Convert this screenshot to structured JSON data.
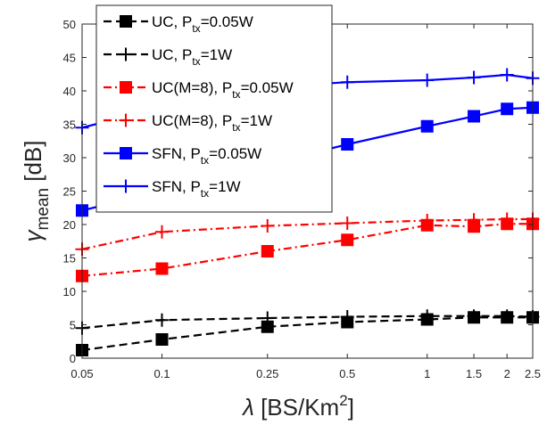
{
  "chart_data": {
    "type": "line",
    "xlabel": "λ [BS/Km²]",
    "xlabel_parts": {
      "symbol": "λ",
      "text": " [BS/Km",
      "sup": "2",
      "close": "]"
    },
    "ylabel": "γmean [dB]",
    "ylabel_parts": {
      "symbol": "γ",
      "sub": "mean",
      "text": " [dB]"
    },
    "x_scale": "log",
    "xlim": [
      0.05,
      2.5
    ],
    "ylim": [
      0,
      50
    ],
    "x_ticks": [
      0.05,
      0.1,
      0.25,
      0.5,
      1,
      1.5,
      2,
      2.5
    ],
    "x_tick_labels": [
      "0.05",
      "0.1",
      "0.25",
      "0.5",
      "1",
      "1.5",
      "2",
      "2.5"
    ],
    "y_ticks": [
      0,
      5,
      10,
      15,
      20,
      25,
      30,
      35,
      40,
      45,
      50
    ],
    "y_tick_labels": [
      "0",
      "5",
      "10",
      "15",
      "20",
      "25",
      "30",
      "35",
      "40",
      "45",
      "50"
    ],
    "grid": false,
    "legend_position": "top-left",
    "x": [
      0.05,
      0.1,
      0.25,
      0.5,
      1,
      1.5,
      2,
      2.5
    ],
    "series": [
      {
        "name": "UC, Ptx=0.05W",
        "label_main": "UC, P",
        "label_sub": "tx",
        "label_tail": "=0.05W",
        "color": "#000000",
        "dash": "dashed",
        "marker": "square",
        "values": [
          1.2,
          2.8,
          4.7,
          5.4,
          5.8,
          6.1,
          6.1,
          6.1
        ]
      },
      {
        "name": "UC, Ptx=1W",
        "label_main": "UC, P",
        "label_sub": "tx",
        "label_tail": "=1W",
        "color": "#000000",
        "dash": "dashed",
        "marker": "plus",
        "values": [
          4.5,
          5.7,
          6.0,
          6.2,
          6.3,
          6.3,
          6.3,
          6.2
        ]
      },
      {
        "name": "UC(M=8), Ptx=0.05W",
        "label_main": "UC(M=8), P",
        "label_sub": "tx",
        "label_tail": "=0.05W",
        "color": "#ff0000",
        "dash": "dashdot",
        "marker": "square",
        "values": [
          12.3,
          13.4,
          16.0,
          17.7,
          19.9,
          19.7,
          20.1,
          20.1
        ]
      },
      {
        "name": "UC(M=8), Ptx=1W",
        "label_main": "UC(M=8), P",
        "label_sub": "tx",
        "label_tail": "=1W",
        "color": "#ff0000",
        "dash": "dashdot",
        "marker": "plus",
        "values": [
          16.3,
          18.9,
          19.8,
          20.2,
          20.6,
          20.7,
          20.8,
          20.8
        ]
      },
      {
        "name": "SFN, Ptx=0.05W",
        "label_main": "SFN, P",
        "label_sub": "tx",
        "label_tail": "=0.05W",
        "color": "#0000ff",
        "dash": "solid",
        "marker": "square",
        "values": [
          22.1,
          25.0,
          29.0,
          32.0,
          34.7,
          36.2,
          37.3,
          37.5
        ]
      },
      {
        "name": "SFN, Ptx=1W",
        "label_main": "SFN, P",
        "label_sub": "tx",
        "label_tail": "=1W",
        "color": "#0000ff",
        "dash": "solid",
        "marker": "plus",
        "values": [
          34.5,
          37.5,
          40.6,
          41.3,
          41.6,
          42.0,
          42.4,
          41.9
        ]
      }
    ]
  }
}
